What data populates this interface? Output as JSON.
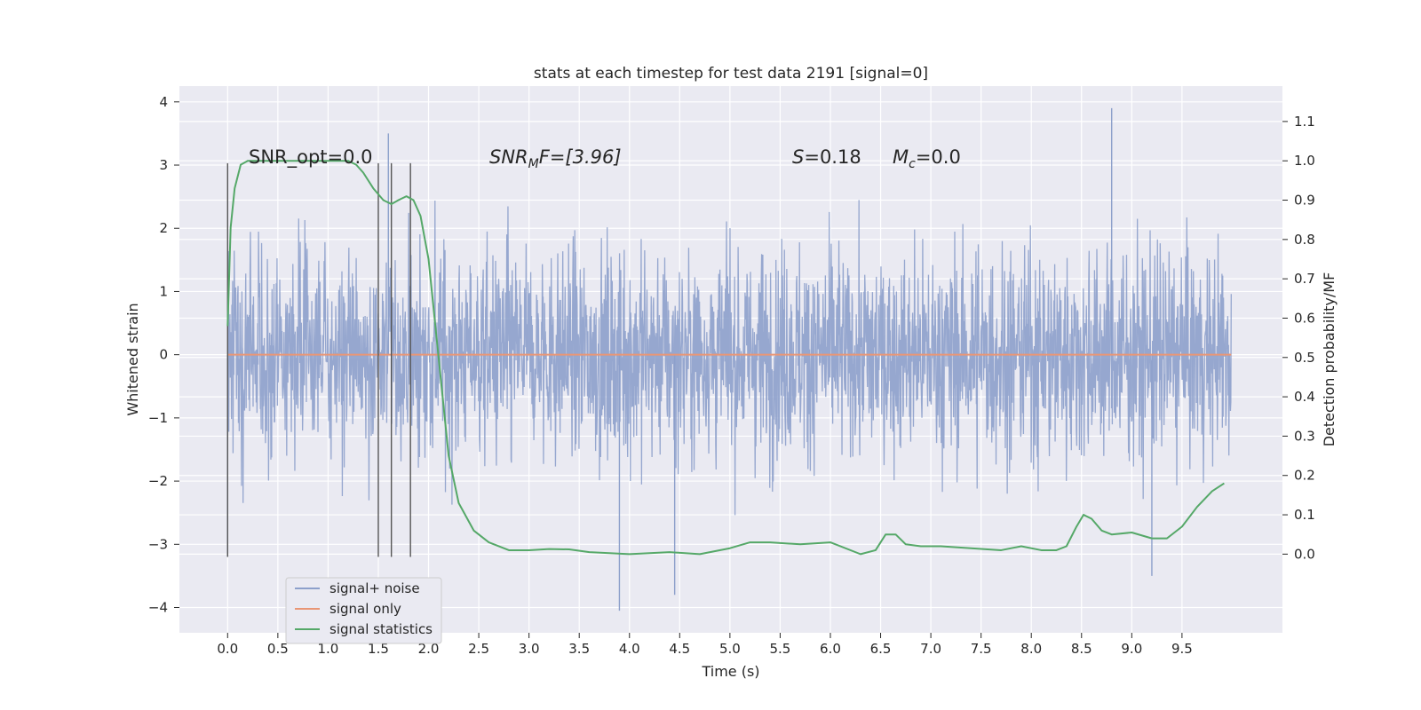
{
  "chart_data": {
    "type": "line",
    "title": "stats at each timestep for test data 2191 [signal=0]",
    "xlabel": "Time (s)",
    "ylabel_left": "Whitened strain",
    "ylabel_right": "Detection probability/MF",
    "xlim": [
      -0.48,
      10.5
    ],
    "ylim_left": [
      -4.4,
      4.25
    ],
    "ylim_right": [
      -0.2,
      1.19
    ],
    "x_ticks": [
      "0.0",
      "0.5",
      "1.0",
      "1.5",
      "2.0",
      "2.5",
      "3.0",
      "3.5",
      "4.0",
      "4.5",
      "5.0",
      "5.5",
      "6.0",
      "6.5",
      "7.0",
      "7.5",
      "8.0",
      "8.5",
      "9.0",
      "9.5"
    ],
    "y_ticks_left": [
      "−4",
      "−3",
      "−2",
      "−1",
      "0",
      "1",
      "2",
      "3",
      "4"
    ],
    "y_ticks_right": [
      "0.0",
      "0.1",
      "0.2",
      "0.3",
      "0.4",
      "0.5",
      "0.6",
      "0.7",
      "0.8",
      "0.9",
      "1.0",
      "1.1"
    ],
    "grid": true,
    "legend_position": "lower-left",
    "annotations": {
      "snr_opt": "SNR_opt=0.0",
      "snr_mf_base": "SNR",
      "snr_mf_sub": "M",
      "snr_mf_rest": "F=[3.96]",
      "s_label": "S",
      "s_value": "=0.18",
      "mc_label": "M",
      "mc_sub": "c",
      "mc_value": "=0.0"
    },
    "vertical_markers_x": [
      0.0,
      1.5,
      1.63,
      1.82
    ],
    "series": [
      {
        "name": "signal+ noise",
        "color": "#8da0cb",
        "axis": "left",
        "x_range": [
          0.0,
          9.99
        ],
        "amplitude_band": [
          -1.9,
          1.9
        ],
        "notable_peaks": [
          [
            0.0,
            -3.2
          ],
          [
            1.6,
            3.5
          ],
          [
            3.9,
            -4.05
          ],
          [
            4.45,
            -3.8
          ],
          [
            8.8,
            3.9
          ],
          [
            9.2,
            -3.5
          ]
        ]
      },
      {
        "name": "signal only",
        "color": "#e99675",
        "axis": "left",
        "x": [
          0.0,
          9.99
        ],
        "y": [
          0.0,
          0.0
        ]
      },
      {
        "name": "signal statistics",
        "color": "#55a868",
        "axis": "right",
        "x": [
          0.0,
          0.03,
          0.07,
          0.13,
          0.2,
          0.3,
          0.6,
          1.0,
          1.2,
          1.28,
          1.35,
          1.45,
          1.55,
          1.63,
          1.7,
          1.78,
          1.85,
          1.92,
          2.0,
          2.1,
          2.2,
          2.3,
          2.45,
          2.6,
          2.8,
          3.0,
          3.2,
          3.4,
          3.6,
          4.0,
          4.4,
          4.7,
          5.0,
          5.2,
          5.4,
          5.7,
          6.0,
          6.3,
          6.45,
          6.55,
          6.65,
          6.75,
          6.9,
          7.1,
          7.4,
          7.7,
          7.9,
          8.1,
          8.25,
          8.35,
          8.45,
          8.52,
          8.6,
          8.7,
          8.8,
          9.0,
          9.2,
          9.35,
          9.5,
          9.65,
          9.8,
          9.92
        ],
        "y": [
          0.58,
          0.83,
          0.93,
          0.99,
          1.0,
          1.0,
          1.0,
          1.0,
          1.0,
          0.99,
          0.97,
          0.93,
          0.9,
          0.89,
          0.9,
          0.91,
          0.9,
          0.86,
          0.75,
          0.5,
          0.25,
          0.13,
          0.06,
          0.03,
          0.01,
          0.01,
          0.013,
          0.012,
          0.005,
          0.0,
          0.005,
          0.0,
          0.015,
          0.03,
          0.03,
          0.025,
          0.03,
          0.0,
          0.01,
          0.05,
          0.05,
          0.025,
          0.02,
          0.02,
          0.015,
          0.01,
          0.02,
          0.01,
          0.01,
          0.02,
          0.07,
          0.1,
          0.09,
          0.06,
          0.05,
          0.055,
          0.04,
          0.04,
          0.07,
          0.12,
          0.16,
          0.18
        ]
      }
    ]
  }
}
